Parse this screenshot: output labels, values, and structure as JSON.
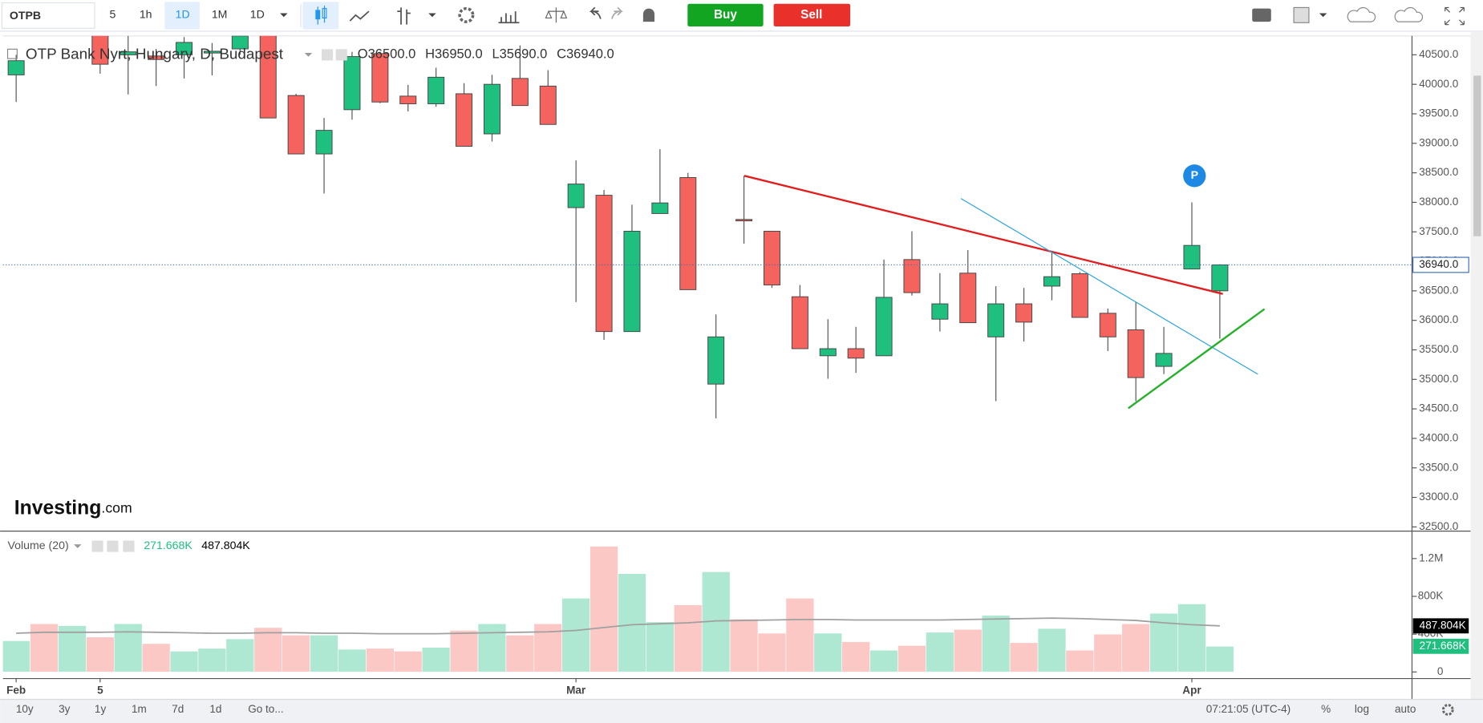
{
  "toolbar": {
    "symbol": "OTPB",
    "intervals": [
      "5",
      "1h",
      "1D",
      "1M",
      "1D"
    ],
    "buy": "Buy",
    "sell": "Sell"
  },
  "footer": {
    "ranges": [
      "10y",
      "3y",
      "1y",
      "1m",
      "7d",
      "1d"
    ],
    "goto": "Go to...",
    "clock": "07:21:05 (UTC-4)",
    "options": [
      "%",
      "log",
      "auto"
    ]
  },
  "logo": {
    "brand": "Investing",
    "suffix": ".com"
  },
  "marker": "P",
  "chart_data": [
    {
      "type": "candlestick",
      "title": "OTP Bank Nyrt, Hungary, D, Budapest",
      "ohlc_legend": [
        {
          "key": "O",
          "value": "36500.0"
        },
        {
          "key": "H",
          "value": "36950.0"
        },
        {
          "key": "L",
          "value": "35690.0"
        },
        {
          "key": "C",
          "value": "36940.0"
        }
      ],
      "categories": [
        "Feb",
        null,
        null,
        "5",
        null,
        null,
        null,
        null,
        null,
        null,
        null,
        null,
        null,
        null,
        null,
        null,
        null,
        null,
        null,
        null,
        "Mar",
        null,
        null,
        null,
        null,
        null,
        null,
        null,
        null,
        null,
        null,
        null,
        null,
        null,
        null,
        null,
        null,
        null,
        null,
        null,
        null,
        null,
        "Apr",
        null
      ],
      "open": [
        40160,
        null,
        null,
        40900,
        40500,
        40480,
        40500,
        40530,
        40600,
        40900,
        39810,
        38820,
        39570,
        40520,
        39800,
        39670,
        39840,
        39160,
        40100,
        39970,
        37910,
        38120,
        35810,
        37810,
        38420,
        34920,
        37710,
        37510,
        36400,
        35400,
        35520,
        35400,
        37030,
        36020,
        36800,
        35720,
        36280,
        36580,
        36790,
        36120,
        35840,
        35220,
        36870,
        36500
      ],
      "high": [
        40500,
        null,
        null,
        41000,
        40820,
        40600,
        40800,
        40700,
        40900,
        41000,
        39840,
        39430,
        40550,
        40550,
        39990,
        40280,
        40020,
        40160,
        40660,
        40240,
        38710,
        38210,
        37960,
        38900,
        38500,
        36100,
        38450,
        37510,
        36600,
        36020,
        35890,
        37030,
        37510,
        36800,
        37190,
        36580,
        36550,
        37170,
        36820,
        36200,
        36310,
        35890,
        38000,
        36950
      ],
      "low": [
        39700,
        null,
        null,
        40180,
        39830,
        39970,
        40100,
        40150,
        40500,
        39430,
        38820,
        38150,
        39400,
        39680,
        39540,
        39620,
        38950,
        39030,
        39640,
        39320,
        36310,
        35670,
        35810,
        37810,
        36520,
        34340,
        37300,
        36550,
        35520,
        35010,
        35110,
        35400,
        36420,
        35810,
        35960,
        34630,
        35640,
        36340,
        36050,
        35480,
        34630,
        35090,
        36870,
        35690
      ],
      "close": [
        40400,
        null,
        null,
        40340,
        40550,
        40420,
        40710,
        40560,
        40820,
        39430,
        38820,
        39220,
        40470,
        39700,
        39670,
        40120,
        38950,
        40000,
        39640,
        39320,
        38310,
        35810,
        37510,
        37990,
        36520,
        35720,
        37690,
        36600,
        35520,
        35520,
        35360,
        36390,
        36470,
        36280,
        35960,
        36280,
        35970,
        36740,
        36050,
        35720,
        35030,
        35440,
        37270,
        36940
      ],
      "up_color": "#1fc07f",
      "down_color": "#f4635d",
      "ylim": [
        32460,
        40820
      ],
      "yticks": [
        {
          "value": 32500,
          "label": "32500.0"
        },
        {
          "value": 33000,
          "label": "33000.0"
        },
        {
          "value": 33500,
          "label": "33500.0"
        },
        {
          "value": 34000,
          "label": "34000.0"
        },
        {
          "value": 34500,
          "label": "34500.0"
        },
        {
          "value": 35000,
          "label": "35000.0"
        },
        {
          "value": 35500,
          "label": "35500.0"
        },
        {
          "value": 36000,
          "label": "36000.0"
        },
        {
          "value": 36500,
          "label": "36500.0"
        },
        {
          "value": 37000,
          "label": "37000.0"
        },
        {
          "value": 37500,
          "label": "37500.0"
        },
        {
          "value": 38000,
          "label": "38000.0"
        },
        {
          "value": 38500,
          "label": "38500.0"
        },
        {
          "value": 39000,
          "label": "39000.0"
        },
        {
          "value": 39500,
          "label": "39500.0"
        },
        {
          "value": 40000,
          "label": "40000.0"
        },
        {
          "value": 40500,
          "label": "40500.0"
        }
      ],
      "last_price": {
        "value": 36940,
        "label": "36940.0"
      }
    },
    {
      "type": "bar",
      "title": "Volume (20)",
      "series": [
        {
          "values": [
            330000,
            510000,
            490000,
            370000,
            510000,
            300000,
            220000,
            250000,
            350000,
            470000,
            390000,
            390000,
            240000,
            250000,
            220000,
            260000,
            440000,
            510000,
            390000,
            510000,
            780000,
            1330000,
            1040000,
            530000,
            710000,
            1060000,
            560000,
            410000,
            780000,
            410000,
            320000,
            230000,
            280000,
            420000,
            450000,
            600000,
            310000,
            460000,
            230000,
            400000,
            510000,
            620000,
            720000,
            271668
          ],
          "colors": [
            "#aee8d2",
            "#fcc8c6",
            "#aee8d2",
            "#fcc8c6",
            "#aee8d2",
            "#fcc8c6",
            "#aee8d2",
            "#aee8d2",
            "#aee8d2",
            "#fcc8c6",
            "#fcc8c6",
            "#aee8d2",
            "#aee8d2",
            "#fcc8c6",
            "#fcc8c6",
            "#aee8d2",
            "#fcc8c6",
            "#aee8d2",
            "#fcc8c6",
            "#fcc8c6",
            "#aee8d2",
            "#fcc8c6",
            "#aee8d2",
            "#aee8d2",
            "#fcc8c6",
            "#aee8d2",
            "#fcc8c6",
            "#fcc8c6",
            "#fcc8c6",
            "#aee8d2",
            "#fcc8c6",
            "#aee8d2",
            "#fcc8c6",
            "#aee8d2",
            "#fcc8c6",
            "#aee8d2",
            "#fcc8c6",
            "#aee8d2",
            "#fcc8c6",
            "#fcc8c6",
            "#fcc8c6",
            "#aee8d2",
            "#aee8d2",
            "#aee8d2"
          ],
          "last_label": "271.668K",
          "label_color": "#1fc07f"
        },
        {
          "values": [
            410000,
            420000,
            420000,
            420000,
            425000,
            420000,
            415000,
            410000,
            410000,
            415000,
            415000,
            410000,
            410000,
            405000,
            405000,
            405000,
            410000,
            415000,
            420000,
            425000,
            440000,
            470000,
            500000,
            510000,
            520000,
            540000,
            545000,
            550000,
            555000,
            555000,
            550000,
            550000,
            550000,
            550000,
            555000,
            560000,
            565000,
            570000,
            565000,
            555000,
            545000,
            520000,
            500000,
            487804
          ],
          "color": "#a0a0a0",
          "last_label": "487.804K",
          "label_color": "#000000"
        }
      ],
      "ylim": [
        0,
        1490000
      ],
      "yticks": [
        0,
        {
          "value": 400000,
          "label": "400K"
        },
        {
          "value": 800000,
          "label": "800K"
        },
        {
          "value": 1200000,
          "label": "1.2M"
        }
      ]
    }
  ]
}
